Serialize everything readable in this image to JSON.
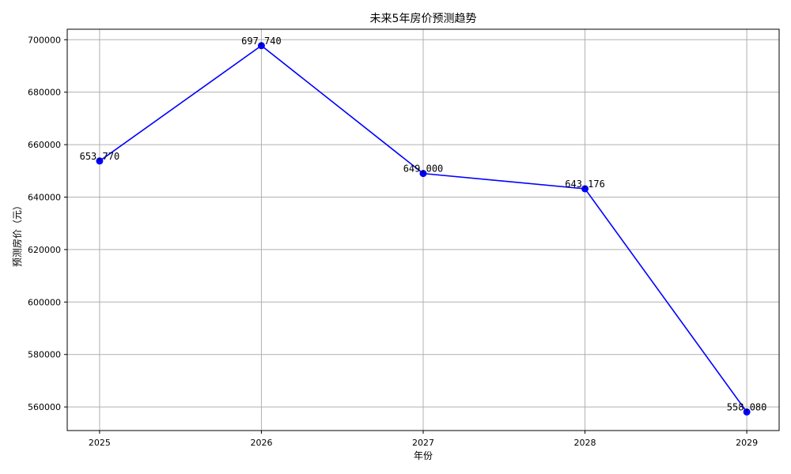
{
  "chart_data": {
    "type": "line",
    "title": "未来5年房价预测趋势",
    "xlabel": "年份",
    "ylabel": "预测房价（元）",
    "x": [
      "2025",
      "2026",
      "2027",
      "2028",
      "2029"
    ],
    "series": [
      {
        "values": [
          653770,
          697740,
          649000,
          643176,
          558080
        ],
        "labels": [
          "653,770",
          "697,740",
          "649,000",
          "643,176",
          "558,080"
        ],
        "color": "#0000ff",
        "marker": "circle"
      }
    ],
    "ylim": [
      551000,
      704000
    ],
    "yticks": [
      560000,
      580000,
      600000,
      620000,
      640000,
      660000,
      680000,
      700000
    ],
    "ytick_labels": [
      "560000",
      "580000",
      "600000",
      "620000",
      "640000",
      "660000",
      "680000",
      "700000"
    ],
    "grid": true
  }
}
